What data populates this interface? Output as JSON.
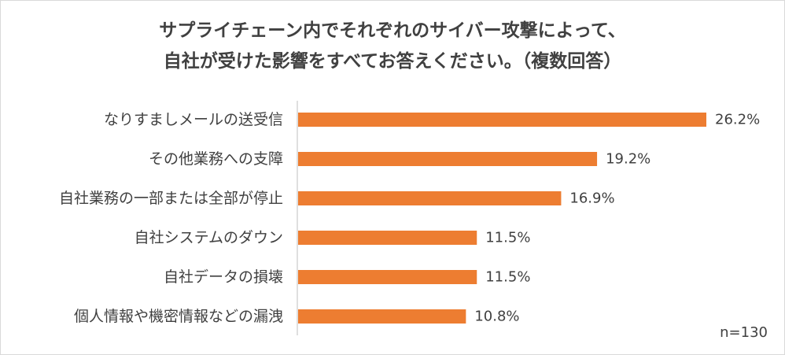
{
  "chart_data": {
    "type": "bar",
    "orientation": "horizontal",
    "title_lines": [
      "サプライチェーン内でそれぞれのサイバー攻撃によって、",
      "自社が受けた影響をすべてお答えください。（複数回答）"
    ],
    "categories": [
      "なりすましメールの送受信",
      "その他業務への支障",
      "自社業務の一部または全部が停止",
      "自社システムのダウン",
      "自社データの損壊",
      "個人情報や機密情報などの漏洩"
    ],
    "values": [
      26.2,
      19.2,
      16.9,
      11.5,
      11.5,
      10.8
    ],
    "data_labels": [
      "26.2%",
      "19.2%",
      "16.9%",
      "11.5%",
      "11.5%",
      "10.8%"
    ],
    "xlim": [
      0,
      26.2
    ],
    "bar_color": "#ed7d31",
    "grid": false,
    "legend": "none",
    "sample_note": "n=130"
  }
}
